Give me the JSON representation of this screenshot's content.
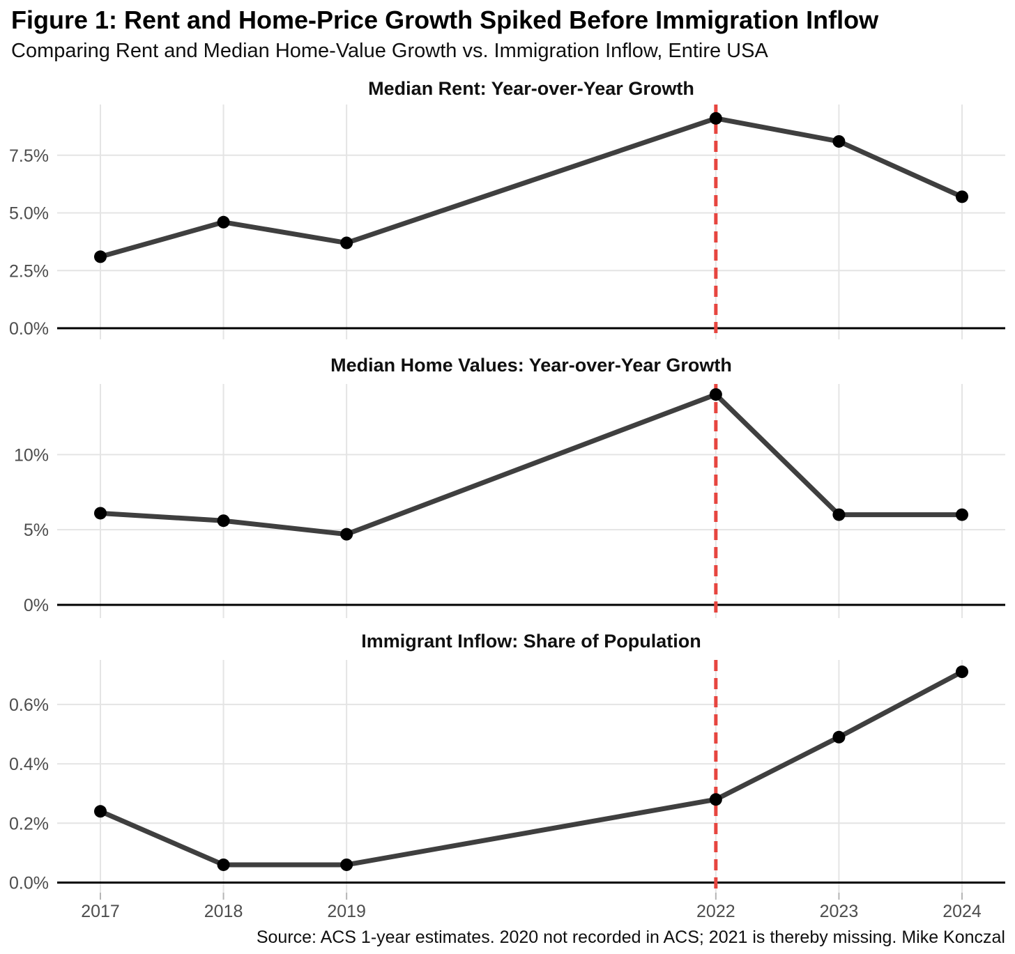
{
  "header": {
    "title": "Figure 1: Rent and Home-Price Growth Spiked Before Immigration Inflow",
    "subtitle": "Comparing Rent and Median Home-Value Growth vs. Immigration Inflow, Entire USA"
  },
  "caption": "Source: ACS 1-year estimates. 2020 not recorded in ACS; 2021 is thereby missing. Mike Konczal",
  "colors": {
    "line": "#3F3F3F",
    "point": "#000000",
    "grid": "#E4E4E4",
    "axis_line": "#000000",
    "tick_label": "#4D4D4D",
    "tick_mark": "#B5B5B5",
    "vline": "#E6453F"
  },
  "x_axis": {
    "tick_years": [
      2017,
      2018,
      2019,
      2022,
      2023,
      2024
    ],
    "tick_labels": [
      "2017",
      "2018",
      "2019",
      "2022",
      "2023",
      "2024"
    ]
  },
  "chart_data": [
    {
      "type": "line",
      "title": "Median Rent: Year-over-Year Growth",
      "x": [
        2017,
        2018,
        2019,
        2022,
        2023,
        2024
      ],
      "values": [
        3.1,
        4.6,
        3.7,
        9.1,
        8.1,
        5.7
      ],
      "unit": "%",
      "xlabel": "",
      "ylabel": "",
      "ylim": [
        0,
        9.7
      ],
      "yticks": [
        {
          "value": 0,
          "label": "0.0%"
        },
        {
          "value": 2.5,
          "label": "2.5%"
        },
        {
          "value": 5,
          "label": "5.0%"
        },
        {
          "value": 7.5,
          "label": "7.5%"
        }
      ],
      "vline_x": 2022,
      "grid": true,
      "legend": "none"
    },
    {
      "type": "line",
      "title": "Median Home Values: Year-over-Year Growth",
      "x": [
        2017,
        2018,
        2019,
        2022,
        2023,
        2024
      ],
      "values": [
        6.1,
        5.6,
        4.7,
        14.0,
        6.0,
        6.0
      ],
      "unit": "%",
      "xlabel": "",
      "ylabel": "",
      "ylim": [
        0,
        14.7
      ],
      "yticks": [
        {
          "value": 0,
          "label": "0%"
        },
        {
          "value": 5,
          "label": "5%"
        },
        {
          "value": 10,
          "label": "10%"
        }
      ],
      "vline_x": 2022,
      "grid": true,
      "legend": "none"
    },
    {
      "type": "line",
      "title": "Immigrant Inflow: Share of Population",
      "x": [
        2017,
        2018,
        2019,
        2022,
        2023,
        2024
      ],
      "values": [
        0.24,
        0.06,
        0.06,
        0.28,
        0.49,
        0.71
      ],
      "unit": "%",
      "xlabel": "",
      "ylabel": "",
      "ylim": [
        0,
        0.75
      ],
      "yticks": [
        {
          "value": 0,
          "label": "0.0%"
        },
        {
          "value": 0.2,
          "label": "0.2%"
        },
        {
          "value": 0.4,
          "label": "0.4%"
        },
        {
          "value": 0.6,
          "label": "0.6%"
        }
      ],
      "vline_x": 2022,
      "grid": true,
      "legend": "none"
    }
  ]
}
